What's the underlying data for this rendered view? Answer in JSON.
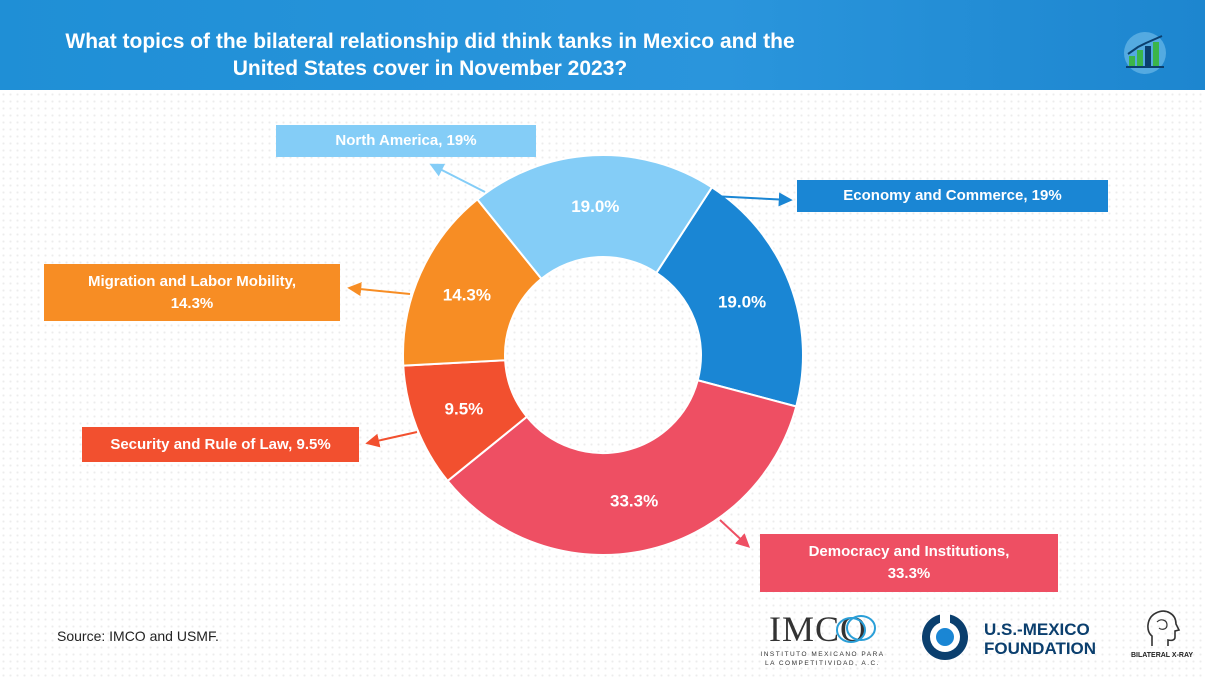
{
  "header": {
    "title_line1": "What topics of the bilateral relationship did think tanks in Mexico and the",
    "title_line2": "United States cover in November 2023?"
  },
  "chart_data": {
    "type": "donut",
    "title": "What topics of the bilateral relationship did think tanks in Mexico and the United States cover in November 2023?",
    "slices": [
      {
        "label": "Economy and Commerce",
        "value": 19.0,
        "display": "19.0%",
        "callout": "Economy and Commerce, 19%",
        "color": "#1a86d4"
      },
      {
        "label": "Democracy and Institutions",
        "value": 33.3,
        "display": "33.3%",
        "callout": "Democracy and Institutions, 33.3%",
        "color": "#ee4f63"
      },
      {
        "label": "Security and Rule of Law",
        "value": 9.5,
        "display": "9.5%",
        "callout": "Security and Rule of Law, 9.5%",
        "color": "#f2502f"
      },
      {
        "label": "Migration and Labor Mobility",
        "value": 14.3,
        "display": "14.3%",
        "callout": "Migration and Labor Mobility, 14.3%",
        "color": "#f78d24"
      },
      {
        "label": "North America",
        "value": 19.0,
        "display": "19.0%",
        "callout": "North America, 19%",
        "color": "#84cdf7"
      }
    ]
  },
  "callouts": {
    "north_america": "North America, 19%",
    "economy": "Economy and Commerce, 19%",
    "migration_line1": "Migration and Labor Mobility,",
    "migration_line2": "14.3%",
    "security": "Security and Rule of Law, 9.5%",
    "democracy_line1": "Democracy and Institutions,",
    "democracy_line2": "33.3%"
  },
  "footer": {
    "source": "Source: IMCO and USMF."
  },
  "logos": {
    "imco": "IMCO",
    "imco_sub_line1": "INSTITUTO MEXICANO PARA",
    "imco_sub_line2": "LA COMPETITIVIDAD, A.C.",
    "usmf_line1": "U.S.-MEXICO",
    "usmf_line2": "FOUNDATION",
    "bilateral": "BILATERAL X-RAY"
  }
}
